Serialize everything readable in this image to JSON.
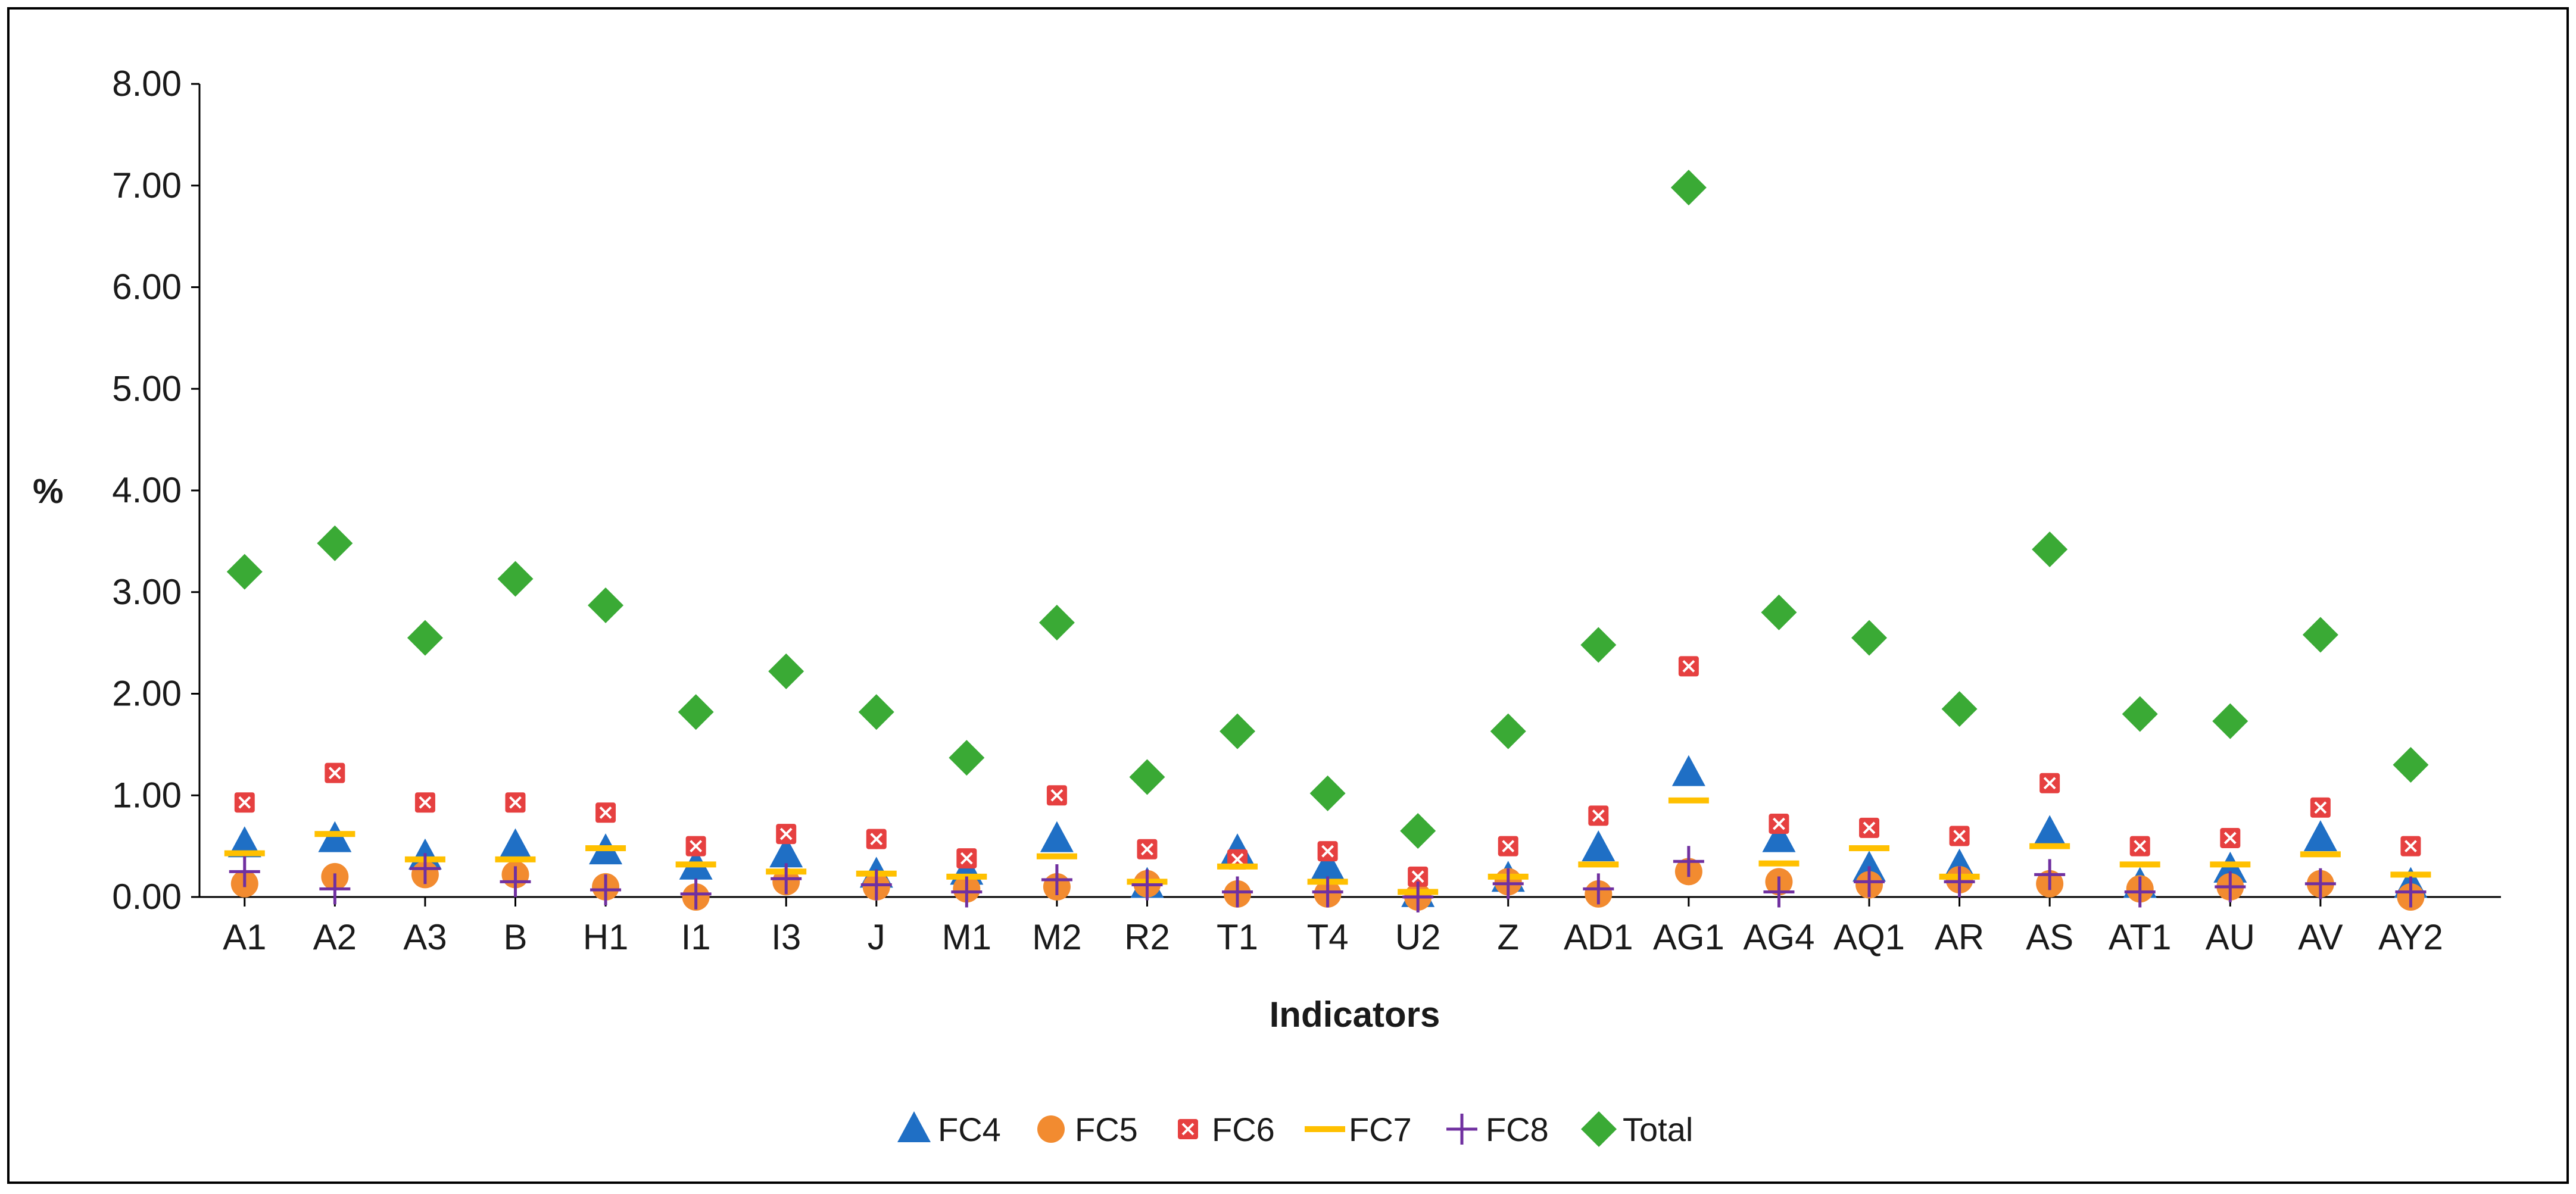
{
  "chart_data": {
    "type": "scatter",
    "title": "",
    "xlabel": "Indicators",
    "ylabel": "%",
    "ylim": [
      0,
      8
    ],
    "y_ticks": [
      "0.00",
      "1.00",
      "2.00",
      "3.00",
      "4.00",
      "5.00",
      "6.00",
      "7.00",
      "8.00"
    ],
    "grid": false,
    "legend_position": "bottom",
    "categories": [
      "A1",
      "A2",
      "A3",
      "B",
      "H1",
      "I1",
      "I3",
      "J",
      "M1",
      "M2",
      "R2",
      "T1",
      "T4",
      "U2",
      "Z",
      "AD1",
      "AG1",
      "AG4",
      "AQ1",
      "AR",
      "AS",
      "AT1",
      "AU",
      "AV",
      "AY2"
    ],
    "series": [
      {
        "name": "FC4",
        "marker": "triangle",
        "color": "#1f6fc5",
        "values": [
          0.52,
          0.57,
          0.4,
          0.5,
          0.45,
          0.3,
          0.42,
          0.22,
          0.25,
          0.57,
          0.12,
          0.45,
          0.3,
          0.03,
          0.18,
          0.48,
          1.22,
          0.57,
          0.28,
          0.3,
          0.63,
          0.12,
          0.27,
          0.58,
          0.12
        ]
      },
      {
        "name": "FC5",
        "marker": "circle",
        "color": "#f28b30",
        "values": [
          0.13,
          0.2,
          0.22,
          0.22,
          0.1,
          0.0,
          0.15,
          0.1,
          0.08,
          0.1,
          0.13,
          0.03,
          0.03,
          0.0,
          0.15,
          0.03,
          0.25,
          0.15,
          0.12,
          0.17,
          0.13,
          0.08,
          0.1,
          0.13,
          0.0
        ]
      },
      {
        "name": "FC6",
        "marker": "x-square",
        "color": "#e64040",
        "values": [
          0.93,
          1.22,
          0.93,
          0.93,
          0.83,
          0.5,
          0.62,
          0.57,
          0.38,
          1.0,
          0.47,
          0.37,
          0.45,
          0.2,
          0.5,
          0.8,
          2.27,
          0.72,
          0.68,
          0.6,
          1.12,
          0.5,
          0.58,
          0.88,
          0.5
        ]
      },
      {
        "name": "FC7",
        "marker": "dash",
        "color": "#ffc000",
        "values": [
          0.43,
          0.62,
          0.37,
          0.37,
          0.48,
          0.32,
          0.25,
          0.23,
          0.2,
          0.4,
          0.15,
          0.3,
          0.15,
          0.05,
          0.2,
          0.32,
          0.95,
          0.33,
          0.48,
          0.2,
          0.5,
          0.32,
          0.32,
          0.42,
          0.22
        ]
      },
      {
        "name": "FC8",
        "marker": "plus",
        "color": "#7030a0",
        "values": [
          0.25,
          0.08,
          0.28,
          0.15,
          0.07,
          0.03,
          0.18,
          0.12,
          0.05,
          0.17,
          0.12,
          0.05,
          0.05,
          0.0,
          0.13,
          0.08,
          0.35,
          0.05,
          0.15,
          0.15,
          0.22,
          0.05,
          0.1,
          0.13,
          0.05
        ]
      },
      {
        "name": "Total",
        "marker": "diamond",
        "color": "#3aaa35",
        "values": [
          3.2,
          3.48,
          2.55,
          3.13,
          2.87,
          1.82,
          2.22,
          1.82,
          1.37,
          2.7,
          1.18,
          1.63,
          1.02,
          0.65,
          1.63,
          2.48,
          6.98,
          2.8,
          2.55,
          1.85,
          3.42,
          1.8,
          1.73,
          2.58,
          1.3
        ]
      }
    ]
  }
}
